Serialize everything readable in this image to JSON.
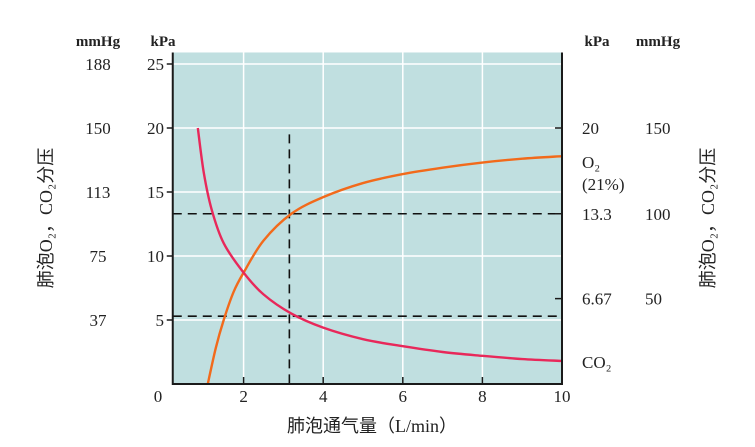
{
  "chart_data": {
    "type": "line",
    "xlabel": "肺泡通气量（L/min）",
    "ylabel_left": "肺泡O₂，CO₂分压",
    "ylabel_right": "肺泡O₂，CO₂分压",
    "left_units": {
      "mmHg": "mmHg",
      "kPa": "kPa"
    },
    "right_units": {
      "kPa": "kPa",
      "mmHg": "mmHg"
    },
    "origin_label": "0",
    "xlim": [
      0.22,
      10
    ],
    "ylim": [
      0,
      25.9
    ],
    "x_ticks": [
      {
        "v": 2,
        "label": "2"
      },
      {
        "v": 4,
        "label": "4"
      },
      {
        "v": 6,
        "label": "6"
      },
      {
        "v": 8,
        "label": "8"
      },
      {
        "v": 10,
        "label": "10"
      }
    ],
    "left_ticks": [
      {
        "v": 25,
        "kpa": "25",
        "mmhg": "188"
      },
      {
        "v": 20,
        "kpa": "20",
        "mmhg": "150"
      },
      {
        "v": 15,
        "kpa": "15",
        "mmhg": "113"
      },
      {
        "v": 10,
        "kpa": "10",
        "mmhg": "75"
      },
      {
        "v": 5,
        "kpa": "5",
        "mmhg": "37"
      }
    ],
    "right_ticks": [
      {
        "v": 20,
        "kpa": "20",
        "mmhg": "150"
      },
      {
        "v": 13.3,
        "kpa": "13.3",
        "mmhg": "100"
      },
      {
        "v": 6.67,
        "kpa": "6.67",
        "mmhg": "50"
      }
    ],
    "grid": true,
    "colors": {
      "background": "#c0dfe0",
      "grid": "#ffffff",
      "o2": "#f26a1b",
      "co2": "#e8285a",
      "axis": "#1a1a1a"
    },
    "series": [
      {
        "name": "O₂",
        "sub": "(21%)",
        "color": "#f26a1b",
        "x": [
          1.1,
          1.3,
          1.5,
          1.75,
          2,
          2.5,
          3.2,
          4,
          5,
          6,
          7,
          8,
          9,
          10
        ],
        "y": [
          0,
          2.8,
          5,
          7.2,
          8.7,
          11.2,
          13.3,
          14.6,
          15.7,
          16.4,
          16.9,
          17.3,
          17.6,
          17.8
        ]
      },
      {
        "name": "CO₂",
        "color": "#e8285a",
        "x": [
          0.85,
          1,
          1.2,
          1.5,
          2,
          2.5,
          3.2,
          4,
          5,
          6,
          7,
          8,
          9,
          10
        ],
        "y": [
          20,
          16.5,
          13.6,
          11,
          8.7,
          7,
          5.5,
          4.4,
          3.5,
          2.95,
          2.5,
          2.2,
          1.95,
          1.8
        ]
      }
    ],
    "reference_lines": {
      "horizontal": [
        13.3,
        5.3
      ],
      "vertical": {
        "x": 3.15,
        "y_top": 19.5
      }
    }
  }
}
